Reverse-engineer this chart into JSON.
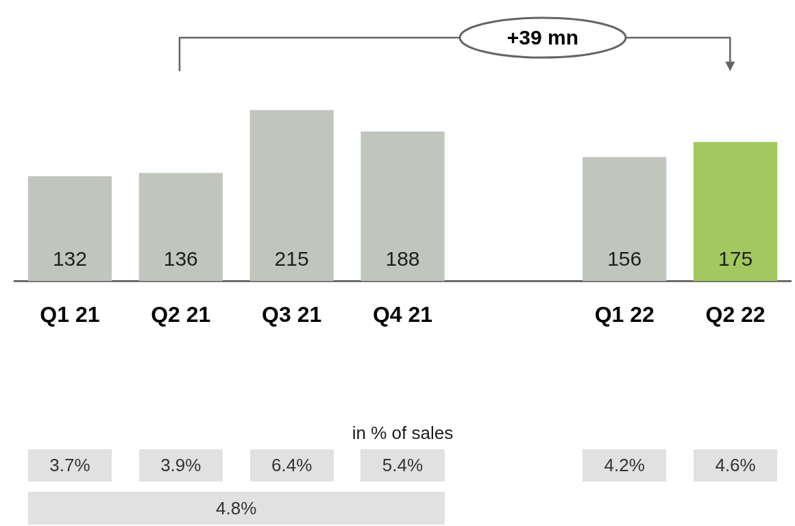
{
  "chart_data": {
    "type": "bar",
    "categories": [
      "Q1 21",
      "Q2 21",
      "Q3 21",
      "Q4 21",
      null,
      "Q1 22",
      "Q2 22"
    ],
    "values": [
      132,
      136,
      215,
      188,
      null,
      156,
      175
    ],
    "colors": [
      "#c0c5be",
      "#c0c5be",
      "#c0c5be",
      "#c0c5be",
      null,
      "#c0c5be",
      "#a2c85f"
    ],
    "data_labels": true,
    "annotations": [
      "+39 mn",
      "in % of sales",
      "3.7%",
      "3.9%",
      "6.4%",
      "5.4%",
      "4.2%",
      "4.6%",
      "4.8%"
    ]
  }
}
